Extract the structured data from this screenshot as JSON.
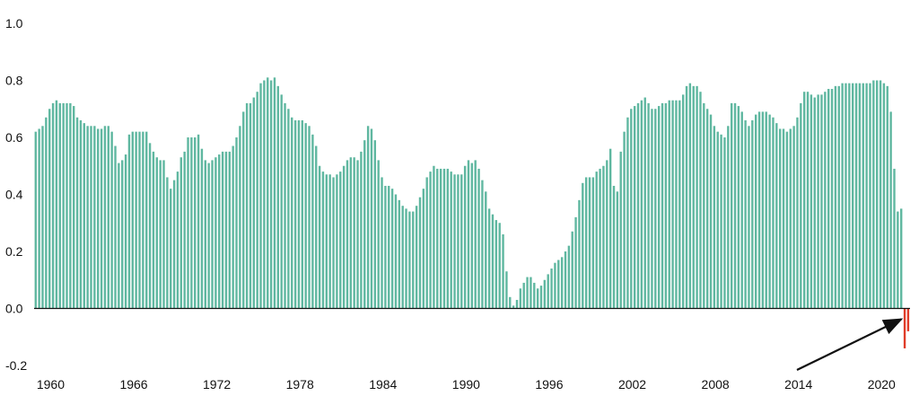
{
  "chart_data": {
    "type": "bar",
    "title": "",
    "xlabel": "",
    "ylabel": "",
    "ylim": [
      -0.2,
      1.0
    ],
    "y_ticks": [
      1.0,
      0.8,
      0.6,
      0.4,
      0.2,
      0.0,
      -0.2
    ],
    "y_tick_labels": [
      "1.0",
      "0.8",
      "0.6",
      "0.4",
      "0.2",
      "0.0",
      "-0.2"
    ],
    "x_ticks": [
      1960,
      1966,
      1972,
      1978,
      1984,
      1990,
      1996,
      2002,
      2008,
      2014,
      2020
    ],
    "x_tick_labels": [
      "1960",
      "1966",
      "1972",
      "1978",
      "1984",
      "1990",
      "1996",
      "2002",
      "2008",
      "2014",
      "2020"
    ],
    "x_start": 1959.0,
    "x_step": 0.25,
    "grid": false,
    "legend": "none",
    "colors": {
      "positive": "#5fb7a0",
      "negative": "#e03c28",
      "axis": "#111111",
      "arrow": "#111111"
    },
    "annotation": {
      "type": "arrow",
      "target": "negative bars 2020"
    },
    "values": [
      0.62,
      0.63,
      0.64,
      0.67,
      0.7,
      0.72,
      0.73,
      0.72,
      0.72,
      0.72,
      0.72,
      0.71,
      0.67,
      0.66,
      0.65,
      0.64,
      0.64,
      0.64,
      0.63,
      0.63,
      0.64,
      0.64,
      0.62,
      0.57,
      0.51,
      0.52,
      0.54,
      0.61,
      0.62,
      0.62,
      0.62,
      0.62,
      0.62,
      0.58,
      0.55,
      0.53,
      0.52,
      0.52,
      0.46,
      0.42,
      0.45,
      0.48,
      0.53,
      0.55,
      0.6,
      0.6,
      0.6,
      0.61,
      0.56,
      0.52,
      0.51,
      0.52,
      0.53,
      0.54,
      0.55,
      0.55,
      0.55,
      0.57,
      0.6,
      0.64,
      0.69,
      0.72,
      0.72,
      0.74,
      0.76,
      0.79,
      0.8,
      0.81,
      0.8,
      0.81,
      0.78,
      0.75,
      0.72,
      0.7,
      0.67,
      0.66,
      0.66,
      0.66,
      0.65,
      0.64,
      0.61,
      0.57,
      0.5,
      0.48,
      0.47,
      0.47,
      0.46,
      0.47,
      0.48,
      0.5,
      0.52,
      0.53,
      0.53,
      0.52,
      0.55,
      0.59,
      0.64,
      0.63,
      0.59,
      0.52,
      0.46,
      0.43,
      0.43,
      0.42,
      0.4,
      0.38,
      0.36,
      0.35,
      0.34,
      0.34,
      0.36,
      0.39,
      0.42,
      0.46,
      0.48,
      0.5,
      0.49,
      0.49,
      0.49,
      0.49,
      0.48,
      0.47,
      0.47,
      0.47,
      0.5,
      0.52,
      0.51,
      0.52,
      0.49,
      0.45,
      0.41,
      0.35,
      0.33,
      0.31,
      0.3,
      0.26,
      0.13,
      0.04,
      0.01,
      0.03,
      0.07,
      0.09,
      0.11,
      0.11,
      0.09,
      0.07,
      0.08,
      0.1,
      0.12,
      0.14,
      0.16,
      0.17,
      0.18,
      0.2,
      0.22,
      0.27,
      0.32,
      0.38,
      0.44,
      0.46,
      0.46,
      0.46,
      0.48,
      0.49,
      0.5,
      0.52,
      0.56,
      0.43,
      0.41,
      0.55,
      0.62,
      0.67,
      0.7,
      0.71,
      0.72,
      0.73,
      0.74,
      0.72,
      0.7,
      0.7,
      0.71,
      0.72,
      0.72,
      0.73,
      0.73,
      0.73,
      0.73,
      0.75,
      0.78,
      0.79,
      0.78,
      0.78,
      0.76,
      0.72,
      0.7,
      0.68,
      0.64,
      0.62,
      0.61,
      0.6,
      0.64,
      0.72,
      0.72,
      0.71,
      0.69,
      0.66,
      0.64,
      0.66,
      0.68,
      0.69,
      0.69,
      0.69,
      0.68,
      0.67,
      0.65,
      0.63,
      0.63,
      0.62,
      0.63,
      0.64,
      0.67,
      0.72,
      0.76,
      0.76,
      0.75,
      0.74,
      0.75,
      0.75,
      0.76,
      0.77,
      0.77,
      0.78,
      0.78,
      0.79,
      0.79,
      0.79,
      0.79,
      0.79,
      0.79,
      0.79,
      0.79,
      0.79,
      0.8,
      0.8,
      0.8,
      0.79,
      0.78,
      0.69,
      0.49,
      0.34,
      0.35,
      -0.14,
      -0.08
    ]
  }
}
